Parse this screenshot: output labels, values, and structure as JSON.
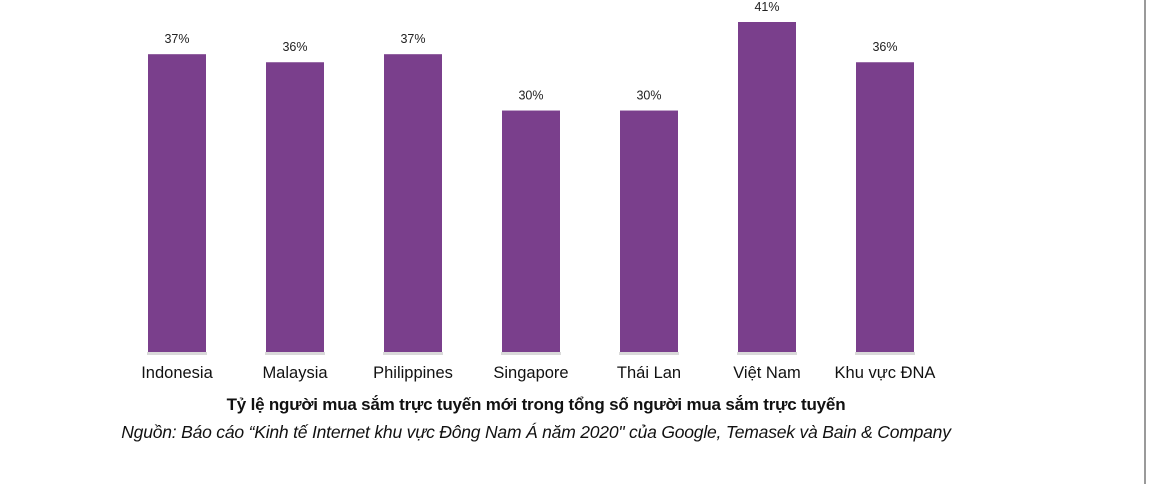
{
  "chart_data": {
    "type": "bar",
    "categories": [
      "Indonesia",
      "Malaysia",
      "Philippines",
      "Singapore",
      "Thái Lan",
      "Việt Nam",
      "Khu vực ĐNA"
    ],
    "values": [
      37,
      36,
      37,
      30,
      30,
      41,
      36
    ],
    "value_labels": [
      "37%",
      "36%",
      "37%",
      "30%",
      "30%",
      "41%",
      "36%"
    ],
    "title": "Tỷ lệ người mua sắm trực tuyến mới trong tổng số người mua sắm trực tuyến",
    "subtitle": "Nguồn: Báo cáo “Kinh tế Internet khu vực Đông Nam Á năm 2020\" của Google, Temasek và Bain & Company",
    "xlabel": "",
    "ylabel": "",
    "ylim": [
      0,
      41
    ],
    "unit": "%",
    "bar_color": "#7a3f8c",
    "grid": false,
    "legend": "none"
  }
}
